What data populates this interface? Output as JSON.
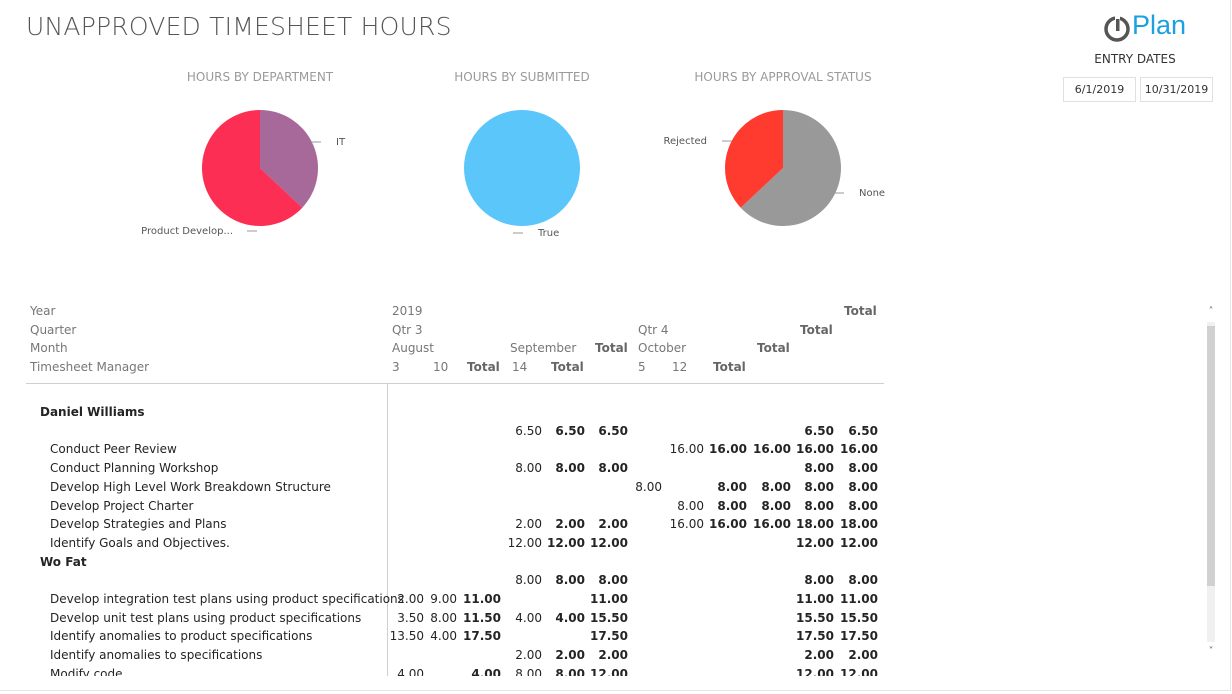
{
  "page": {
    "title": "UNAPPROVED TIMESHEET HOURS",
    "logo_text": "Plan",
    "entry_dates_label": "ENTRY DATES",
    "start_date": "6/1/2019",
    "end_date": "10/31/2019",
    "accent_color": "#1ba1e2"
  },
  "charts": {
    "department": {
      "title": "HOURS BY DEPARTMENT"
    },
    "submitted": {
      "title": "HOURS BY SUBMITTED"
    },
    "approval": {
      "title": "HOURS BY APPROVAL STATUS"
    }
  },
  "chart_data": [
    {
      "type": "pie",
      "title": "HOURS BY DEPARTMENT",
      "slices": [
        {
          "label": "IT",
          "value": 37,
          "color": "#a66999"
        },
        {
          "label": "Product Develop...",
          "value": 63,
          "color": "#fd2e54"
        }
      ]
    },
    {
      "type": "pie",
      "title": "HOURS BY SUBMITTED",
      "slices": [
        {
          "label": "True",
          "value": 100,
          "color": "#5bc6fa"
        }
      ]
    },
    {
      "type": "pie",
      "title": "HOURS BY APPROVAL STATUS",
      "slices": [
        {
          "label": "None",
          "value": 63,
          "color": "#999999"
        },
        {
          "label": "Rejected",
          "value": 37,
          "color": "#ff3b30"
        }
      ]
    }
  ],
  "matrix": {
    "row_headers": {
      "year": "Year",
      "quarter": "Quarter",
      "month": "Month",
      "manager": "Timesheet Manager"
    },
    "col": {
      "year_2019": "2019",
      "qtr3": "Qtr 3",
      "qtr4": "Qtr 4",
      "august": "August",
      "september": "September",
      "october": "October",
      "w3": "3",
      "w10": "10",
      "w14": "14",
      "w5": "5",
      "w12": "12",
      "total": "Total"
    },
    "groups": [
      {
        "name": "Daniel Williams",
        "subtotal": [
          "",
          "",
          "",
          "6.50",
          "6.50",
          "6.50",
          "",
          "",
          "",
          "",
          "6.50",
          "6.50"
        ],
        "rows": [
          {
            "label": "Conduct Peer Review",
            "cells": [
              "",
              "",
              "",
              "",
              "",
              "",
              "",
              "16.00",
              "16.00",
              "16.00",
              "16.00",
              "16.00"
            ]
          },
          {
            "label": "Conduct Planning Workshop",
            "cells": [
              "",
              "",
              "",
              "8.00",
              "8.00",
              "8.00",
              "",
              "",
              "",
              "",
              "8.00",
              "8.00"
            ]
          },
          {
            "label": "Develop High Level Work Breakdown Structure",
            "cells": [
              "",
              "",
              "",
              "",
              "",
              "",
              "8.00",
              "",
              "8.00",
              "8.00",
              "8.00",
              "8.00"
            ]
          },
          {
            "label": "Develop Project Charter",
            "cells": [
              "",
              "",
              "",
              "",
              "",
              "",
              "",
              "8.00",
              "8.00",
              "8.00",
              "8.00",
              "8.00"
            ]
          },
          {
            "label": "Develop Strategies and Plans",
            "cells": [
              "",
              "",
              "",
              "2.00",
              "2.00",
              "2.00",
              "",
              "16.00",
              "16.00",
              "16.00",
              "18.00",
              "18.00"
            ]
          },
          {
            "label": "Identify Goals and Objectives.",
            "cells": [
              "",
              "",
              "",
              "12.00",
              "12.00",
              "12.00",
              "",
              "",
              "",
              "",
              "12.00",
              "12.00"
            ]
          }
        ]
      },
      {
        "name": "Wo Fat",
        "subtotal": [
          "",
          "",
          "",
          "8.00",
          "8.00",
          "8.00",
          "",
          "",
          "",
          "",
          "8.00",
          "8.00"
        ],
        "rows": [
          {
            "label": "Develop integration test plans using product specifications",
            "cells": [
              "2.00",
              "9.00",
              "11.00",
              "",
              "",
              "11.00",
              "",
              "",
              "",
              "",
              "11.00",
              "11.00"
            ]
          },
          {
            "label": "Develop unit test plans using product specifications",
            "cells": [
              "3.50",
              "8.00",
              "11.50",
              "4.00",
              "4.00",
              "15.50",
              "",
              "",
              "",
              "",
              "15.50",
              "15.50"
            ]
          },
          {
            "label": "Identify anomalies to product specifications",
            "cells": [
              "13.50",
              "4.00",
              "17.50",
              "",
              "",
              "17.50",
              "",
              "",
              "",
              "",
              "17.50",
              "17.50"
            ]
          },
          {
            "label": "Identify anomalies to specifications",
            "cells": [
              "",
              "",
              "",
              "2.00",
              "2.00",
              "2.00",
              "",
              "",
              "",
              "",
              "2.00",
              "2.00"
            ]
          },
          {
            "label": "Modify code",
            "cells": [
              "4.00",
              "",
              "4.00",
              "8.00",
              "8.00",
              "12.00",
              "",
              "",
              "",
              "",
              "12.00",
              "12.00"
            ]
          }
        ]
      }
    ]
  }
}
